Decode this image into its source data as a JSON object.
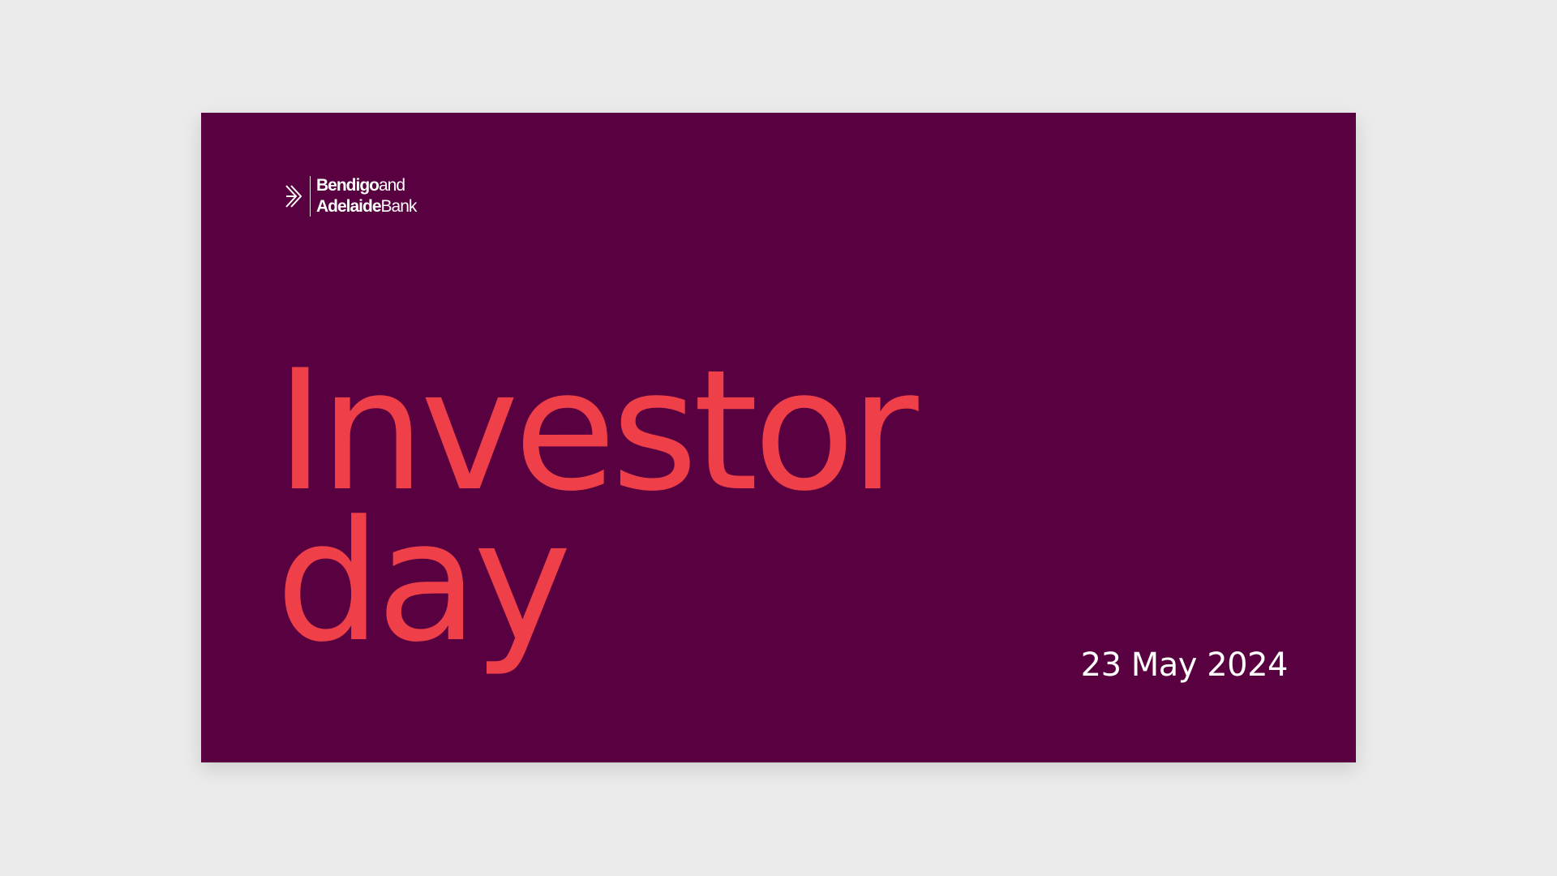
{
  "colors": {
    "page_background": "#ebebeb",
    "slide_background": "#580040",
    "title": "#ef404a",
    "text_light": "#ffffff"
  },
  "logo": {
    "icon": "chevron-arrows-logo-icon",
    "line1_bold": "Bendigo",
    "line1_regular": "and",
    "line2_bold": "Adelaide",
    "line2_regular": "Bank"
  },
  "slide": {
    "title_line1": "Investor",
    "title_line2": "day",
    "date": "23 May 2024"
  }
}
